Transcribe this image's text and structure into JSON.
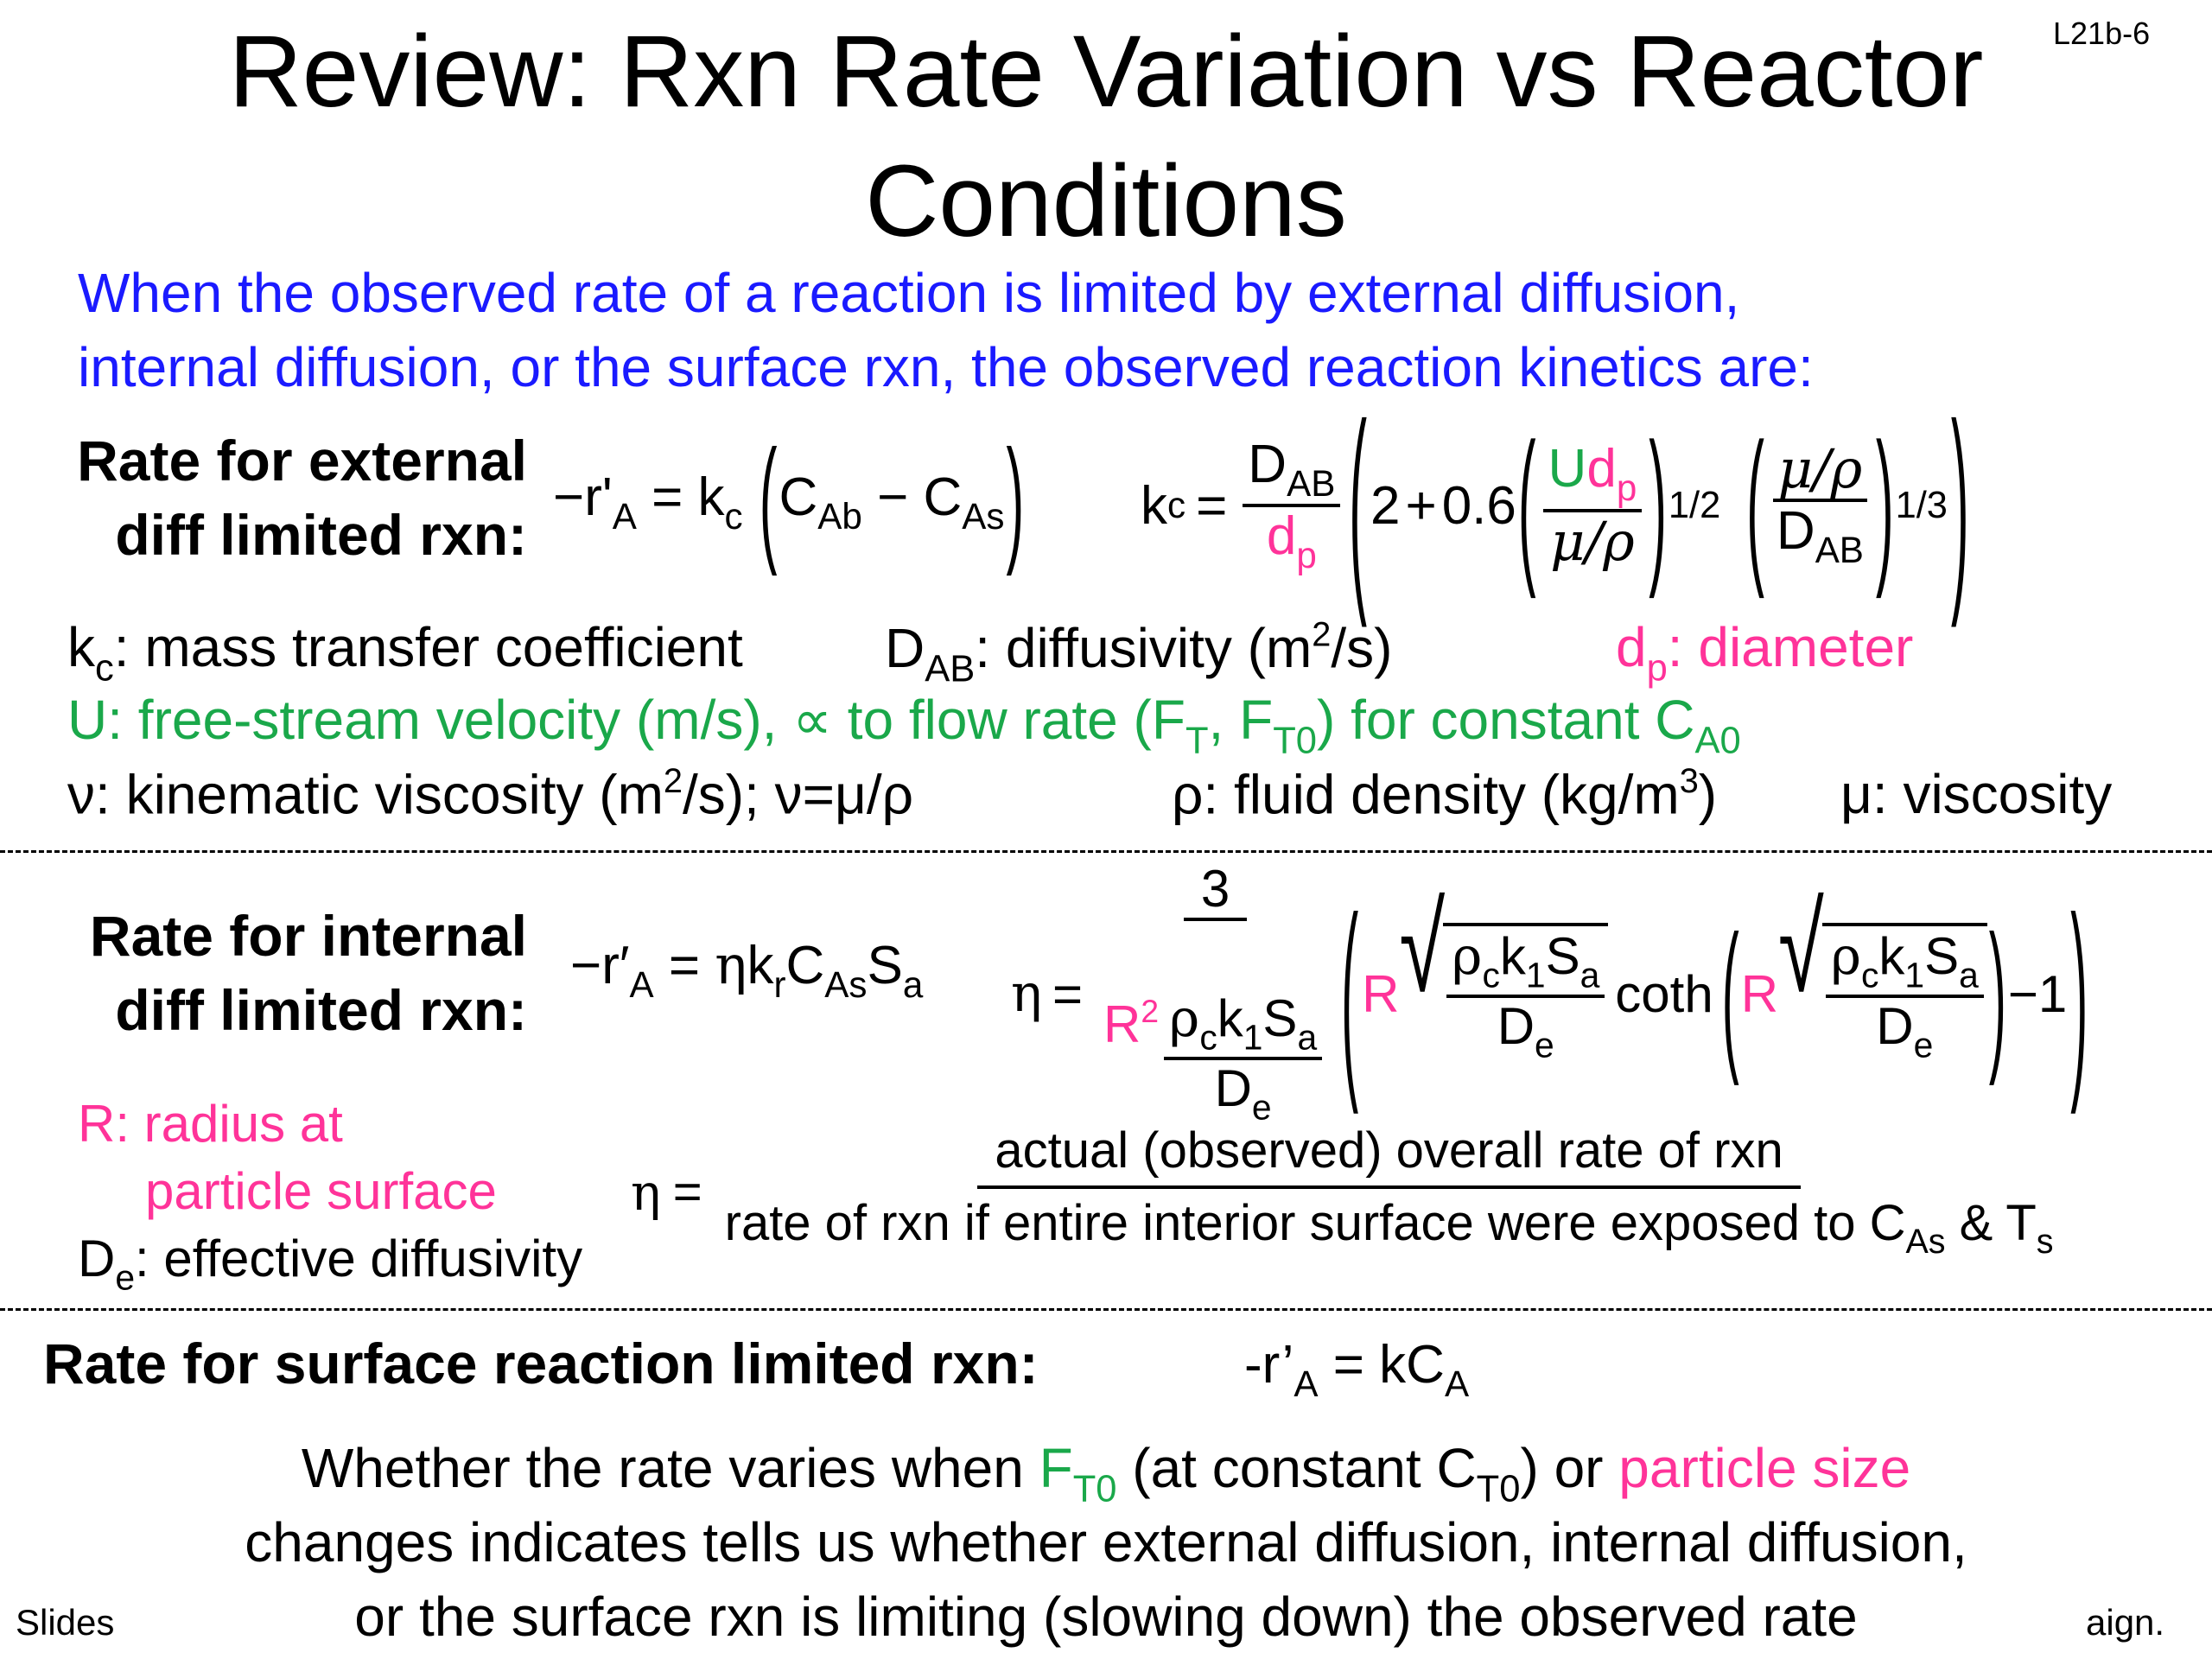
{
  "slide_number": "L21b-6",
  "title": {
    "line1": "Review: Rxn Rate Variation vs Reactor",
    "line2": "Conditions"
  },
  "intro": {
    "line1": "When the observed rate of a reaction is limited by external diffusion,",
    "line2": "internal diffusion, or the surface rxn, the observed reaction kinetics are:"
  },
  "external": {
    "label_line1": "Rate for external",
    "label_line2": "diff limited rxn:",
    "rate_lhs": "−r'",
    "rate_lhs_sub": "A",
    "kc": "k",
    "kc_sub": "c",
    "c_ab": "C",
    "c_ab_sub": "Ab",
    "c_as": "C",
    "c_as_sub": "As",
    "dab": "D",
    "dab_sub": "AB",
    "dp": "d",
    "dp_sub": "p",
    "two": "2",
    "coef": "0.6",
    "u": "U",
    "mu_rho": "μ/ρ",
    "exp_half": "1/2",
    "exp_third": "1/3"
  },
  "definitions": {
    "kc_text": ": mass transfer coefficient",
    "dab_text": ": diffusivity (m",
    "dab_units_tail": "/s)",
    "dp_text": ": diameter",
    "u_text": "U: free-stream velocity (m/s), ∝ to flow rate (F",
    "u_ft": "T",
    "u_mid": ", F",
    "u_ft0": "T0",
    "u_tail": ") for constant C",
    "u_ca0": "A0",
    "nu_text": "ν: kinematic viscosity (m",
    "nu_tail": "/s); ν=μ/ρ",
    "rho_text": "ρ: fluid density (kg/m",
    "rho_tail": ")",
    "mu_text": "μ: viscosity",
    "two": "2",
    "three": "3"
  },
  "internal": {
    "label_line1": "Rate for internal",
    "label_line2": "diff limited rxn:",
    "rate_lhs": "−r′",
    "rate_lhs_sub": "A",
    "eta": "η",
    "kr": "k",
    "kr_sub": "r",
    "cas": "C",
    "cas_sub": "As",
    "sa": "S",
    "sa_sub": "a",
    "three": "3",
    "r": "R",
    "r2_sup": "2",
    "rho": "ρ",
    "rho_sub": "c",
    "k1": "k",
    "k1_sub": "1",
    "de": "D",
    "de_sub": "e",
    "coth": "coth",
    "minus_one": "−1"
  },
  "internal_defs": {
    "r_line1": "R: radius at",
    "r_line2": "particle surface",
    "de_tail": ": effective diffusivity",
    "eta_num": "actual (observed) overall rate of rxn",
    "eta_den": "rate of rxn if entire interior surface were exposed to C",
    "eta_den_sub": "As",
    "eta_den_amp": " & T",
    "eta_den_ts": "s"
  },
  "surface": {
    "label": "Rate for surface reaction limited rxn:",
    "rate": "-r’",
    "rate_sub": "A",
    "rhs": "= kC",
    "rhs_sub": "A"
  },
  "conclusion": {
    "pre": "Whether the rate varies when ",
    "ft0": "F",
    "ft0_sub": "T0",
    "mid": " (at constant C",
    "ct0_sub": "T0",
    "mid2": ") or ",
    "particle": "particle size",
    "line2": "changes indicates tells us whether external diffusion, internal diffusion,",
    "line3": "or the surface rxn is limiting (slowing down) the observed rate"
  },
  "footer": {
    "left": "Slides",
    "right": "aign."
  },
  "colors": {
    "blue": "#1a1aff",
    "green": "#1aa84a",
    "pink": "#ff3399"
  }
}
